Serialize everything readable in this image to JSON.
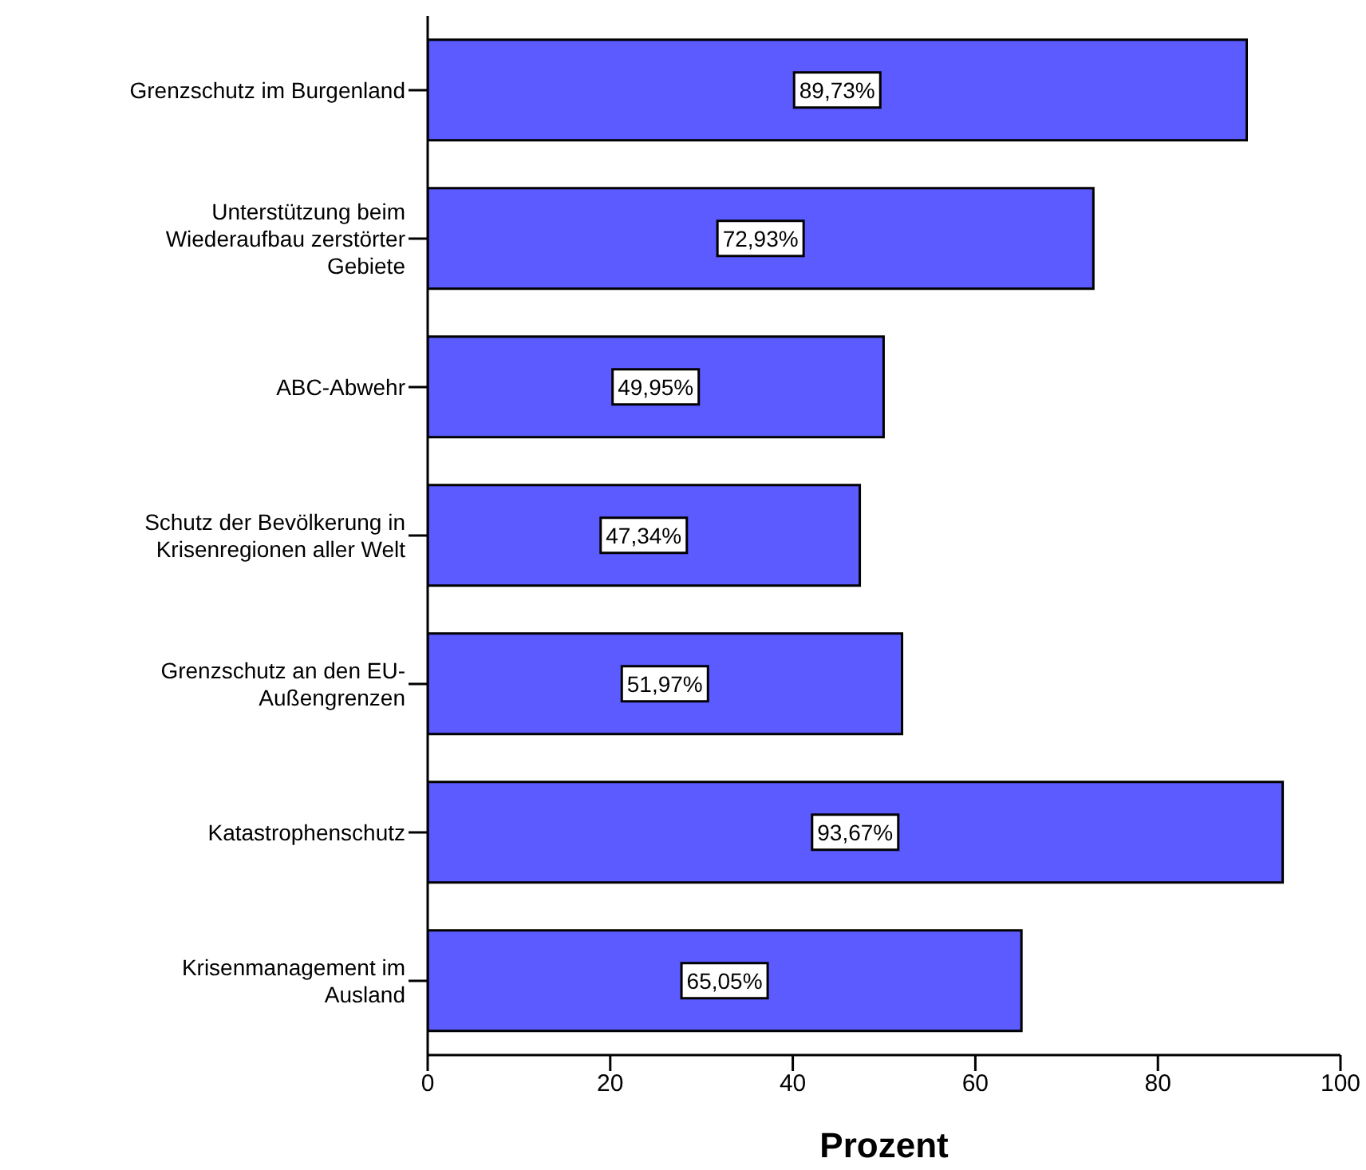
{
  "chart_data": {
    "type": "bar",
    "orientation": "horizontal",
    "xlabel": "Prozent",
    "categories": [
      "Grenzschutz im Burgenland",
      "Unterstützung beim Wiederaufbau zerstörter Gebiete",
      "ABC-Abwehr",
      "Schutz der Bevölkerung in Krisenregionen aller Welt",
      "Grenzschutz an den EU-Außengrenzen",
      "Katastrophenschutz",
      "Krisenmanagement im Ausland"
    ],
    "values": [
      89.73,
      72.93,
      49.95,
      47.34,
      51.97,
      93.67,
      65.05
    ],
    "value_labels": [
      "89,73%",
      "72,93%",
      "49,95%",
      "47,34%",
      "51,97%",
      "93,67%",
      "65,05%"
    ],
    "color": "#5b5bff",
    "xlim": [
      0,
      100
    ],
    "xticks": [
      0,
      20,
      40,
      60,
      80,
      100
    ],
    "grid": false,
    "legend": false
  }
}
